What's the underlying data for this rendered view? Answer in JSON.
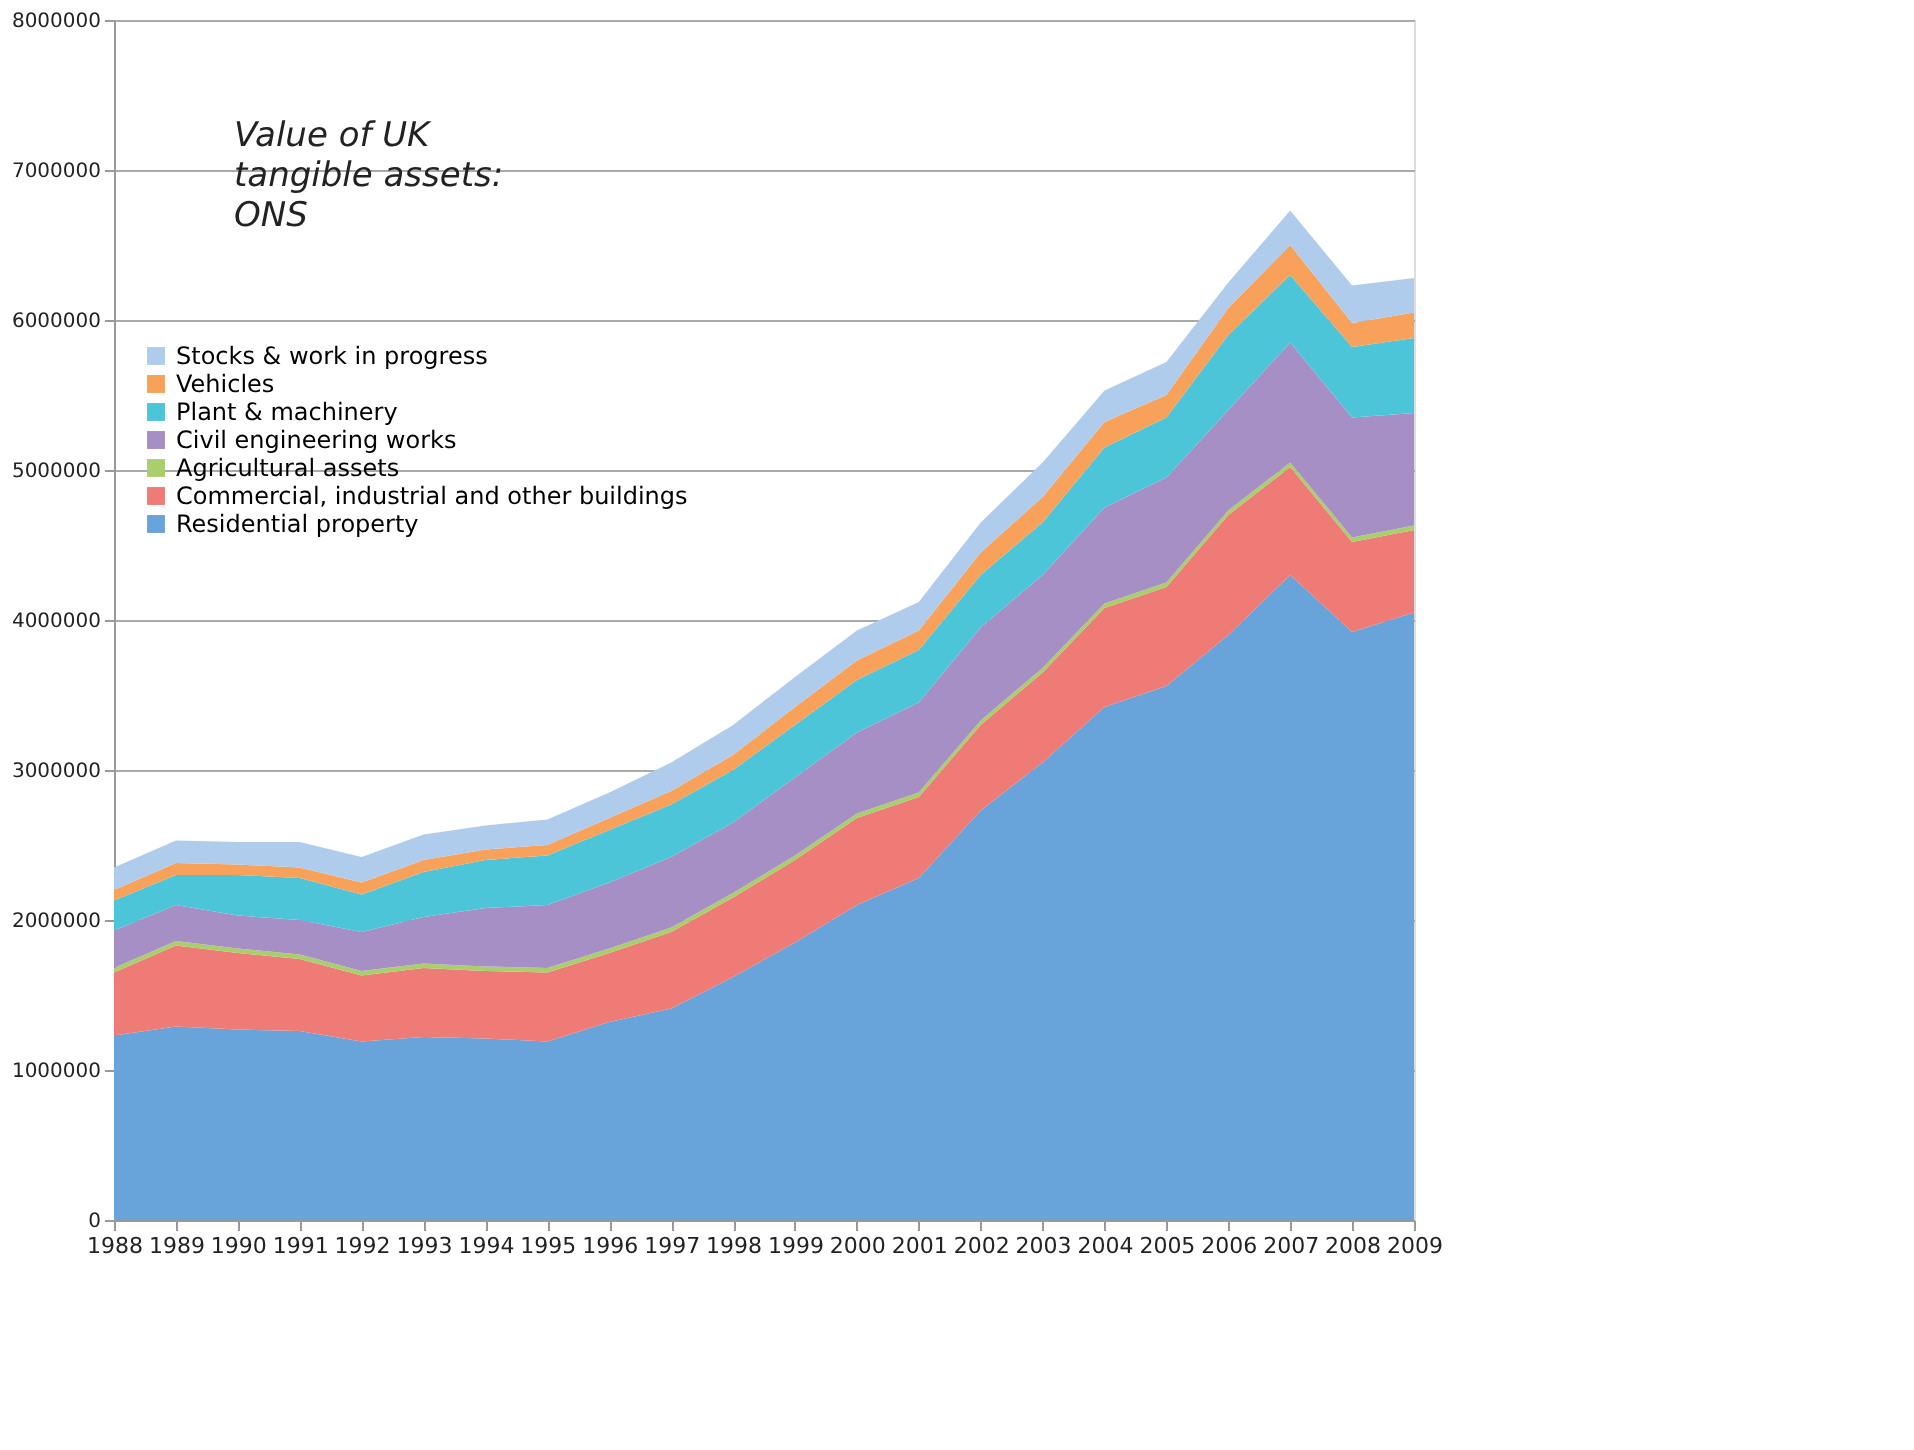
{
  "chart_data": {
    "type": "area",
    "stacked": true,
    "categories": [
      "1988",
      "1989",
      "1990",
      "1991",
      "1992",
      "1993",
      "1994",
      "1995",
      "1996",
      "1997",
      "1998",
      "1999",
      "2000",
      "2001",
      "2002",
      "2003",
      "2004",
      "2005",
      "2006",
      "2007",
      "2008",
      "2009"
    ],
    "series": [
      {
        "name": "Residential property",
        "color": "#68a4d9",
        "values": [
          1230000,
          1290000,
          1270000,
          1260000,
          1190000,
          1220000,
          1210000,
          1190000,
          1320000,
          1410000,
          1620000,
          1850000,
          2100000,
          2280000,
          2730000,
          3050000,
          3420000,
          3560000,
          3900000,
          4300000,
          3920000,
          4050000
        ]
      },
      {
        "name": "Commercial, industrial and other buildings",
        "color": "#ee7b76",
        "values": [
          420000,
          540000,
          510000,
          480000,
          440000,
          460000,
          450000,
          460000,
          460000,
          510000,
          530000,
          550000,
          580000,
          540000,
          570000,
          600000,
          660000,
          660000,
          800000,
          720000,
          600000,
          550000
        ]
      },
      {
        "name": "Agricultural assets",
        "color": "#a9cf6c",
        "values": [
          30000,
          30000,
          30000,
          30000,
          30000,
          30000,
          30000,
          30000,
          30000,
          30000,
          30000,
          30000,
          30000,
          30000,
          30000,
          30000,
          30000,
          30000,
          30000,
          30000,
          30000,
          30000
        ]
      },
      {
        "name": "Civil engineering works",
        "color": "#a58fc4",
        "values": [
          250000,
          240000,
          220000,
          230000,
          260000,
          310000,
          390000,
          420000,
          440000,
          470000,
          470000,
          520000,
          540000,
          600000,
          620000,
          620000,
          640000,
          700000,
          670000,
          800000,
          800000,
          750000
        ]
      },
      {
        "name": "Plant & machinery",
        "color": "#4cc5d8",
        "values": [
          200000,
          200000,
          270000,
          280000,
          250000,
          300000,
          320000,
          330000,
          350000,
          350000,
          350000,
          350000,
          350000,
          350000,
          350000,
          350000,
          400000,
          400000,
          500000,
          450000,
          470000,
          500000
        ]
      },
      {
        "name": "Vehicles",
        "color": "#f8a15a",
        "values": [
          70000,
          80000,
          70000,
          70000,
          80000,
          80000,
          70000,
          70000,
          80000,
          90000,
          100000,
          120000,
          130000,
          130000,
          150000,
          170000,
          170000,
          150000,
          180000,
          200000,
          160000,
          170000
        ]
      },
      {
        "name": "Stocks & work in progress",
        "color": "#b0ccec",
        "values": [
          150000,
          150000,
          150000,
          170000,
          170000,
          170000,
          160000,
          170000,
          170000,
          190000,
          200000,
          200000,
          200000,
          190000,
          200000,
          230000,
          210000,
          220000,
          170000,
          230000,
          250000,
          230000
        ]
      }
    ],
    "ylim": [
      0,
      8000000
    ],
    "yticks": [
      0,
      1000000,
      2000000,
      3000000,
      4000000,
      5000000,
      6000000,
      7000000,
      8000000
    ],
    "grid": "y",
    "legend": "top left",
    "annotations": [
      "Value of UK tangible assets: ONS"
    ]
  }
}
